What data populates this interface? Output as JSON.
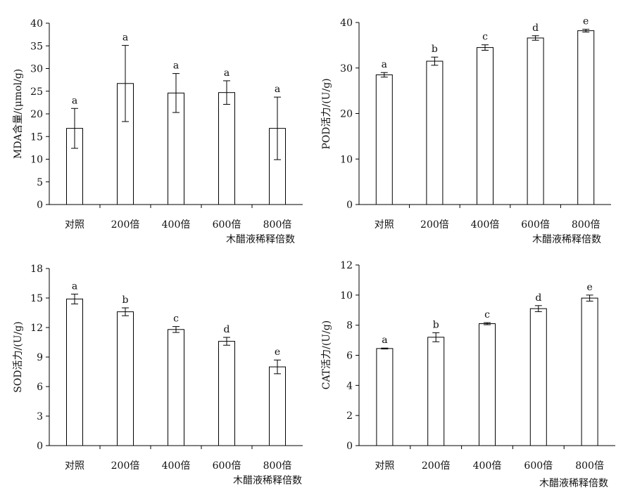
{
  "chart_data": [
    {
      "type": "bar",
      "ylabel": "MDA含量/(μmol/g)",
      "xlabel": "木醋液稀释倍数",
      "ylim": [
        0,
        40
      ],
      "yticks": [
        0,
        5,
        10,
        15,
        20,
        25,
        30,
        35,
        40
      ],
      "categories": [
        "对照",
        "200倍",
        "400倍",
        "600倍",
        "800倍"
      ],
      "values": [
        16.8,
        26.7,
        24.6,
        24.7,
        16.8
      ],
      "errors": [
        4.4,
        8.4,
        4.3,
        2.6,
        6.9
      ],
      "letters": [
        "a",
        "a",
        "a",
        "a",
        "a"
      ]
    },
    {
      "type": "bar",
      "ylabel": "POD活力/(U/g)",
      "xlabel": "木醋液稀释倍数",
      "ylim": [
        0,
        40
      ],
      "yticks": [
        0,
        10,
        20,
        30,
        40
      ],
      "categories": [
        "对照",
        "200倍",
        "400倍",
        "600倍",
        "800倍"
      ],
      "values": [
        28.5,
        31.5,
        34.5,
        36.6,
        38.2
      ],
      "errors": [
        0.5,
        0.9,
        0.6,
        0.5,
        0.3
      ],
      "letters": [
        "a",
        "b",
        "c",
        "d",
        "e"
      ]
    },
    {
      "type": "bar",
      "ylabel": "SOD活力/(U/g)",
      "xlabel": "木醋液稀释倍数",
      "ylim": [
        0,
        18
      ],
      "yticks": [
        0,
        3,
        6,
        9,
        12,
        15,
        18
      ],
      "categories": [
        "对照",
        "200倍",
        "400倍",
        "600倍",
        "800倍"
      ],
      "values": [
        14.9,
        13.6,
        11.8,
        10.6,
        8.0
      ],
      "errors": [
        0.5,
        0.4,
        0.3,
        0.4,
        0.7
      ],
      "letters": [
        "a",
        "b",
        "c",
        "d",
        "e"
      ]
    },
    {
      "type": "bar",
      "ylabel": "CAT活力/(U/g)",
      "xlabel": "木醋液稀释倍数",
      "ylim": [
        0,
        12
      ],
      "yticks": [
        0,
        2,
        4,
        6,
        8,
        10,
        12
      ],
      "categories": [
        "对照",
        "200倍",
        "400倍",
        "600倍",
        "800倍"
      ],
      "values": [
        6.45,
        7.2,
        8.1,
        9.1,
        9.8
      ],
      "errors": [
        0.03,
        0.3,
        0.07,
        0.2,
        0.2
      ],
      "letters": [
        "a",
        "b",
        "c",
        "d",
        "e"
      ]
    }
  ]
}
